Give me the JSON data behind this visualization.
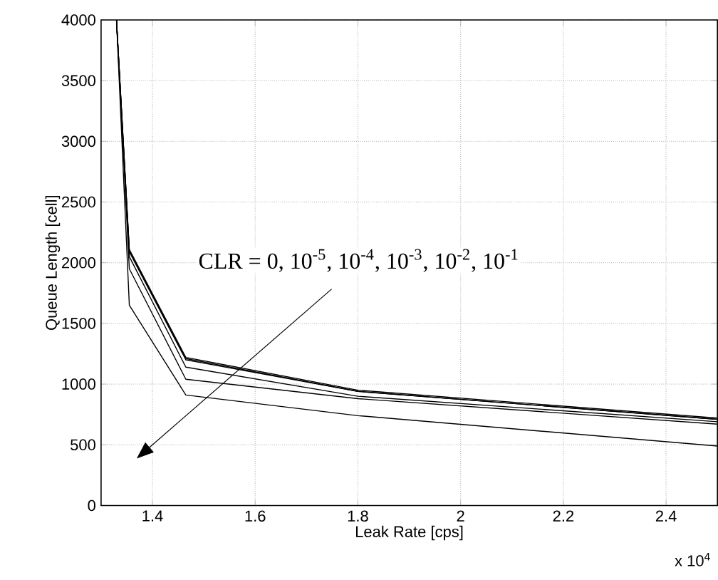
{
  "chart_data": {
    "type": "line",
    "xlabel": "Leak Rate [cps]",
    "ylabel": "Queue Length [cell]",
    "x": [
      1.33,
      1.355,
      1.465,
      1.8,
      2.5
    ],
    "series": [
      {
        "color": "#000000",
        "values": [
          4000,
          2110,
          1220,
          950,
          720
        ]
      },
      {
        "color": "#000000",
        "values": [
          4000,
          2100,
          1210,
          940,
          710
        ]
      },
      {
        "color": "#000000",
        "values": [
          4000,
          2090,
          1200,
          940,
          710
        ]
      },
      {
        "color": "#000000",
        "values": [
          4000,
          2050,
          1140,
          900,
          690
        ]
      },
      {
        "color": "#000000",
        "values": [
          4000,
          1950,
          1040,
          880,
          670
        ]
      },
      {
        "color": "#000000",
        "values": [
          4000,
          1650,
          910,
          740,
          490
        ]
      }
    ],
    "xlim": [
      1.3,
      2.5
    ],
    "xticks": [
      1.4,
      1.6,
      1.8,
      2,
      2.2,
      2.4
    ],
    "ylim": [
      0,
      4000
    ],
    "yticks": [
      0,
      500,
      1000,
      1500,
      2000,
      2500,
      3000,
      3500,
      4000
    ],
    "grid": true,
    "annotations": [
      "CLR = 0, 10$^{-5}$, 10$^{-4}$, 10$^{-3}$, 10$^{-2}$, 10$^{-1}$",
      "x 10$^{4}$"
    ]
  }
}
